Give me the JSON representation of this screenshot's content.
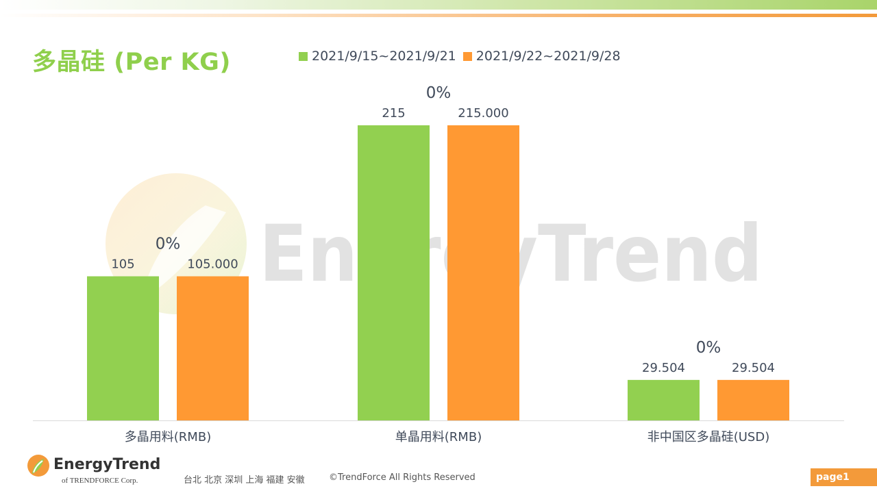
{
  "header": {
    "title": "多晶硅 (Per KG)"
  },
  "colors": {
    "series1": "#92d050",
    "series2": "#ff9933",
    "title": "#8fcf4c",
    "watermark": "#d9d9d9",
    "badge": "#f39a3a"
  },
  "chart_data": {
    "type": "bar",
    "categories": [
      "多晶用料(RMB)",
      "单晶用料(RMB)",
      "非中国区多晶硅(USD)"
    ],
    "series": [
      {
        "name": "2021/9/15~2021/9/21",
        "values": [
          105,
          215,
          29.504
        ],
        "labels": [
          "105",
          "215",
          "29.504"
        ]
      },
      {
        "name": "2021/9/22~2021/9/28",
        "values": [
          105,
          215,
          29.504
        ],
        "labels": [
          "105.000",
          "215.000",
          "29.504"
        ]
      }
    ],
    "change_labels": [
      "0%",
      "0%",
      "0%"
    ],
    "ylim": [
      0,
      215
    ],
    "grid": false,
    "legend_position": "top"
  },
  "watermark": {
    "text": "EnergyTrend"
  },
  "footer": {
    "logo_text": "EnergyTrend",
    "logo_sub": "of TRENDFORCE Corp.",
    "cities": "台北  北京  深圳  上海  福建  安徽",
    "copyright": "©TrendForce All Rights Reserved",
    "page": "page1"
  }
}
